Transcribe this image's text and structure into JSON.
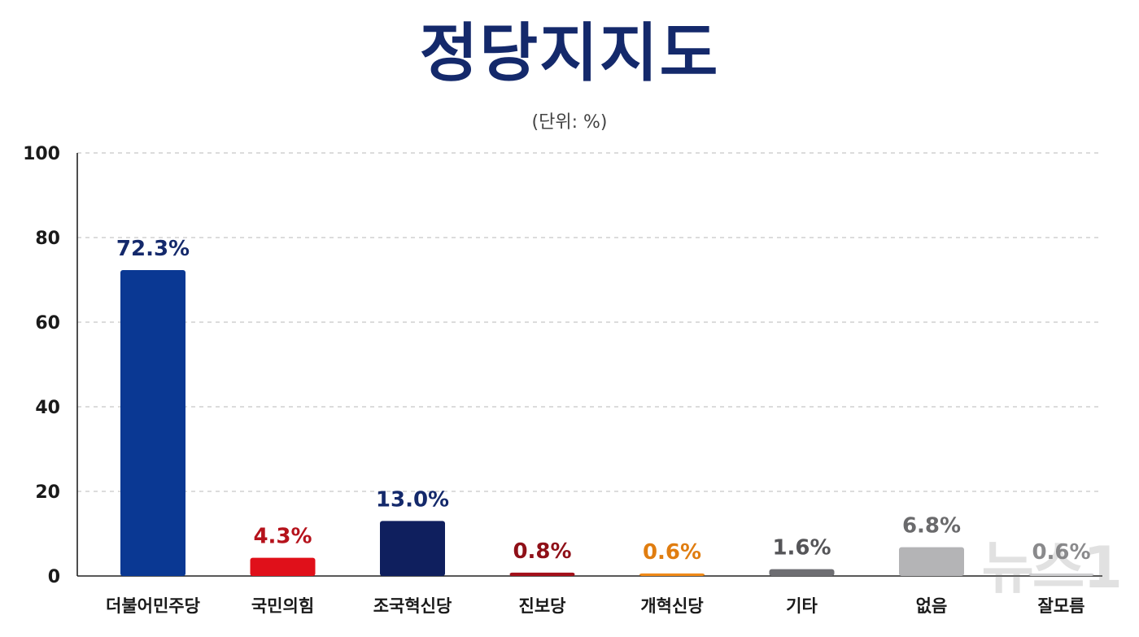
{
  "chart_data": {
    "type": "bar",
    "title": "정당지지도",
    "subtitle": "(단위: %)",
    "ylim": [
      0,
      100
    ],
    "yticks": [
      0,
      20,
      40,
      60,
      80,
      100
    ],
    "grid": true,
    "categories": [
      "더불어민주당",
      "국민의힘",
      "조국혁신당",
      "진보당",
      "개혁신당",
      "기타",
      "없음",
      "잘모름"
    ],
    "values": [
      72.3,
      4.3,
      13.0,
      0.8,
      0.6,
      1.6,
      6.8,
      0.6
    ],
    "data_labels": [
      "72.3%",
      "4.3%",
      "13.0%",
      "0.8%",
      "0.6%",
      "1.6%",
      "6.8%",
      "0.6%"
    ],
    "bar_colors": [
      "#0a3893",
      "#e0101a",
      "#0f1f5e",
      "#a3101a",
      "#f08a18",
      "#6e6e72",
      "#b4b4b6",
      "#cfcfd1"
    ],
    "label_colors": [
      "#14296b",
      "#b5121b",
      "#14296b",
      "#8f1018",
      "#e07d10",
      "#555558",
      "#6a6a6c",
      "#8a8a8c"
    ]
  },
  "watermark": "뉴스1"
}
